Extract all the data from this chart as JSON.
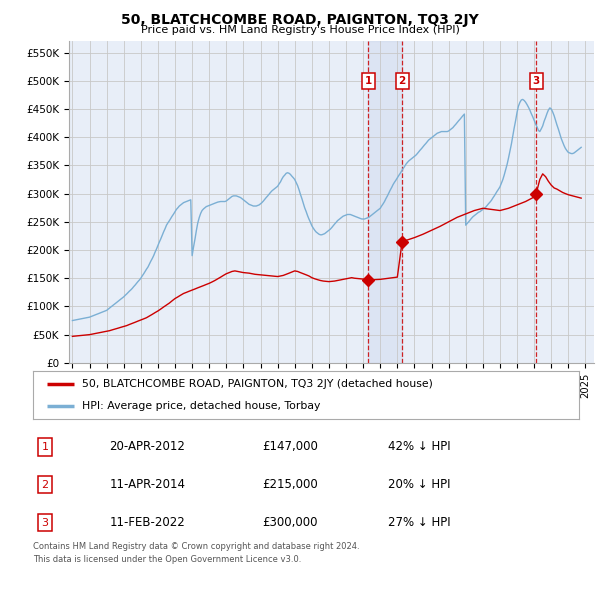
{
  "title": "50, BLATCHCOMBE ROAD, PAIGNTON, TQ3 2JY",
  "subtitle": "Price paid vs. HM Land Registry's House Price Index (HPI)",
  "yticks": [
    0,
    50000,
    100000,
    150000,
    200000,
    250000,
    300000,
    350000,
    400000,
    450000,
    500000,
    550000
  ],
  "ylim": [
    0,
    570000
  ],
  "xlim": [
    1994.8,
    2025.5
  ],
  "background_color": "#ffffff",
  "chart_bg_color": "#e8eef8",
  "grid_color": "#c8c8c8",
  "hpi_color": "#7bafd4",
  "sale_color": "#cc0000",
  "annotation_color": "#cc0000",
  "sale_label": "50, BLATCHCOMBE ROAD, PAIGNTON, TQ3 2JY (detached house)",
  "hpi_label": "HPI: Average price, detached house, Torbay",
  "footnote1": "Contains HM Land Registry data © Crown copyright and database right 2024.",
  "footnote2": "This data is licensed under the Open Government Licence v3.0.",
  "sales": [
    {
      "num": 1,
      "date_x": 2012.3,
      "price": 147000,
      "label": "20-APR-2012",
      "price_str": "£147,000",
      "pct": "42% ↓ HPI"
    },
    {
      "num": 2,
      "date_x": 2014.28,
      "price": 215000,
      "label": "11-APR-2014",
      "price_str": "£215,000",
      "pct": "20% ↓ HPI"
    },
    {
      "num": 3,
      "date_x": 2022.12,
      "price": 300000,
      "label": "11-FEB-2022",
      "price_str": "£300,000",
      "pct": "27% ↓ HPI"
    }
  ],
  "hpi_data_x": [
    1995.0,
    1995.08,
    1995.17,
    1995.25,
    1995.33,
    1995.42,
    1995.5,
    1995.58,
    1995.67,
    1995.75,
    1995.83,
    1995.92,
    1996.0,
    1996.08,
    1996.17,
    1996.25,
    1996.33,
    1996.42,
    1996.5,
    1996.58,
    1996.67,
    1996.75,
    1996.83,
    1996.92,
    1997.0,
    1997.08,
    1997.17,
    1997.25,
    1997.33,
    1997.42,
    1997.5,
    1997.58,
    1997.67,
    1997.75,
    1997.83,
    1997.92,
    1998.0,
    1998.08,
    1998.17,
    1998.25,
    1998.33,
    1998.42,
    1998.5,
    1998.58,
    1998.67,
    1998.75,
    1998.83,
    1998.92,
    1999.0,
    1999.08,
    1999.17,
    1999.25,
    1999.33,
    1999.42,
    1999.5,
    1999.58,
    1999.67,
    1999.75,
    1999.83,
    1999.92,
    2000.0,
    2000.08,
    2000.17,
    2000.25,
    2000.33,
    2000.42,
    2000.5,
    2000.58,
    2000.67,
    2000.75,
    2000.83,
    2000.92,
    2001.0,
    2001.08,
    2001.17,
    2001.25,
    2001.33,
    2001.42,
    2001.5,
    2001.58,
    2001.67,
    2001.75,
    2001.83,
    2001.92,
    2002.0,
    2002.08,
    2002.17,
    2002.25,
    2002.33,
    2002.42,
    2002.5,
    2002.58,
    2002.67,
    2002.75,
    2002.83,
    2002.92,
    2003.0,
    2003.08,
    2003.17,
    2003.25,
    2003.33,
    2003.42,
    2003.5,
    2003.58,
    2003.67,
    2003.75,
    2003.83,
    2003.92,
    2004.0,
    2004.08,
    2004.17,
    2004.25,
    2004.33,
    2004.42,
    2004.5,
    2004.58,
    2004.67,
    2004.75,
    2004.83,
    2004.92,
    2005.0,
    2005.08,
    2005.17,
    2005.25,
    2005.33,
    2005.42,
    2005.5,
    2005.58,
    2005.67,
    2005.75,
    2005.83,
    2005.92,
    2006.0,
    2006.08,
    2006.17,
    2006.25,
    2006.33,
    2006.42,
    2006.5,
    2006.58,
    2006.67,
    2006.75,
    2006.83,
    2006.92,
    2007.0,
    2007.08,
    2007.17,
    2007.25,
    2007.33,
    2007.42,
    2007.5,
    2007.58,
    2007.67,
    2007.75,
    2007.83,
    2007.92,
    2008.0,
    2008.08,
    2008.17,
    2008.25,
    2008.33,
    2008.42,
    2008.5,
    2008.58,
    2008.67,
    2008.75,
    2008.83,
    2008.92,
    2009.0,
    2009.08,
    2009.17,
    2009.25,
    2009.33,
    2009.42,
    2009.5,
    2009.58,
    2009.67,
    2009.75,
    2009.83,
    2009.92,
    2010.0,
    2010.08,
    2010.17,
    2010.25,
    2010.33,
    2010.42,
    2010.5,
    2010.58,
    2010.67,
    2010.75,
    2010.83,
    2010.92,
    2011.0,
    2011.08,
    2011.17,
    2011.25,
    2011.33,
    2011.42,
    2011.5,
    2011.58,
    2011.67,
    2011.75,
    2011.83,
    2011.92,
    2012.0,
    2012.08,
    2012.17,
    2012.25,
    2012.33,
    2012.42,
    2012.5,
    2012.58,
    2012.67,
    2012.75,
    2012.83,
    2012.92,
    2013.0,
    2013.08,
    2013.17,
    2013.25,
    2013.33,
    2013.42,
    2013.5,
    2013.58,
    2013.67,
    2013.75,
    2013.83,
    2013.92,
    2014.0,
    2014.08,
    2014.17,
    2014.25,
    2014.33,
    2014.42,
    2014.5,
    2014.58,
    2014.67,
    2014.75,
    2014.83,
    2014.92,
    2015.0,
    2015.08,
    2015.17,
    2015.25,
    2015.33,
    2015.42,
    2015.5,
    2015.58,
    2015.67,
    2015.75,
    2015.83,
    2015.92,
    2016.0,
    2016.08,
    2016.17,
    2016.25,
    2016.33,
    2016.42,
    2016.5,
    2016.58,
    2016.67,
    2016.75,
    2016.83,
    2016.92,
    2017.0,
    2017.08,
    2017.17,
    2017.25,
    2017.33,
    2017.42,
    2017.5,
    2017.58,
    2017.67,
    2017.75,
    2017.83,
    2017.92,
    2018.0,
    2018.08,
    2018.17,
    2018.25,
    2018.33,
    2018.42,
    2018.5,
    2018.58,
    2018.67,
    2018.75,
    2018.83,
    2018.92,
    2019.0,
    2019.08,
    2019.17,
    2019.25,
    2019.33,
    2019.42,
    2019.5,
    2019.58,
    2019.67,
    2019.75,
    2019.83,
    2019.92,
    2020.0,
    2020.08,
    2020.17,
    2020.25,
    2020.33,
    2020.42,
    2020.5,
    2020.58,
    2020.67,
    2020.75,
    2020.83,
    2020.92,
    2021.0,
    2021.08,
    2021.17,
    2021.25,
    2021.33,
    2021.42,
    2021.5,
    2021.58,
    2021.67,
    2021.75,
    2021.83,
    2021.92,
    2022.0,
    2022.08,
    2022.17,
    2022.25,
    2022.33,
    2022.42,
    2022.5,
    2022.58,
    2022.67,
    2022.75,
    2022.83,
    2022.92,
    2023.0,
    2023.08,
    2023.17,
    2023.25,
    2023.33,
    2023.42,
    2023.5,
    2023.58,
    2023.67,
    2023.75,
    2023.83,
    2023.92,
    2024.0,
    2024.08,
    2024.17,
    2024.25,
    2024.33,
    2024.42,
    2024.5,
    2024.58,
    2024.67,
    2024.75
  ],
  "hpi_data_y": [
    75000,
    75500,
    76000,
    76500,
    77000,
    77500,
    78000,
    78500,
    79000,
    79500,
    80000,
    80500,
    81000,
    82000,
    83000,
    84000,
    85000,
    86000,
    87000,
    88000,
    89000,
    90000,
    91000,
    92000,
    93000,
    95000,
    97000,
    99000,
    101000,
    103000,
    105000,
    107000,
    109000,
    111000,
    113000,
    115000,
    117000,
    119500,
    122000,
    124500,
    127000,
    129500,
    132000,
    135000,
    138000,
    141000,
    144000,
    147000,
    150000,
    154000,
    158000,
    162000,
    166000,
    170000,
    175000,
    180000,
    185000,
    190000,
    196000,
    202000,
    208000,
    214000,
    220000,
    226000,
    232000,
    238000,
    244000,
    248000,
    252000,
    256000,
    260000,
    264000,
    268000,
    272000,
    275000,
    278000,
    280000,
    282000,
    284000,
    285000,
    286000,
    287000,
    288000,
    289000,
    190000,
    205000,
    220000,
    235000,
    248000,
    258000,
    265000,
    270000,
    273000,
    275000,
    277000,
    278000,
    279000,
    280000,
    281000,
    282000,
    283000,
    284000,
    285000,
    285500,
    286000,
    286000,
    286000,
    286000,
    287000,
    289000,
    291000,
    293000,
    295000,
    296000,
    296000,
    296000,
    295000,
    294000,
    293000,
    291000,
    289000,
    287000,
    285000,
    283000,
    281000,
    280000,
    279000,
    278000,
    278000,
    278000,
    279000,
    280000,
    282000,
    284000,
    287000,
    290000,
    293000,
    296000,
    299000,
    302000,
    305000,
    307000,
    309000,
    311000,
    313000,
    317000,
    321000,
    326000,
    330000,
    333000,
    336000,
    337000,
    336000,
    334000,
    331000,
    328000,
    325000,
    320000,
    314000,
    307000,
    299000,
    291000,
    283000,
    275000,
    268000,
    261000,
    255000,
    249000,
    243000,
    239000,
    235000,
    232000,
    230000,
    228000,
    227000,
    227000,
    228000,
    229000,
    231000,
    233000,
    235000,
    237000,
    240000,
    243000,
    246000,
    249000,
    252000,
    254000,
    256000,
    258000,
    260000,
    261000,
    262000,
    263000,
    263000,
    263000,
    262000,
    261000,
    260000,
    259000,
    258000,
    257000,
    256000,
    255000,
    255000,
    255000,
    256000,
    257000,
    258000,
    260000,
    262000,
    264000,
    266000,
    268000,
    270000,
    272000,
    274000,
    278000,
    282000,
    286000,
    291000,
    296000,
    301000,
    306000,
    311000,
    316000,
    320000,
    324000,
    328000,
    332000,
    336000,
    340000,
    344000,
    348000,
    352000,
    355000,
    358000,
    360000,
    362000,
    364000,
    366000,
    368000,
    371000,
    374000,
    377000,
    380000,
    383000,
    386000,
    389000,
    392000,
    395000,
    397000,
    399000,
    401000,
    403000,
    405000,
    407000,
    408000,
    409000,
    410000,
    410000,
    410000,
    410000,
    410000,
    411000,
    413000,
    415000,
    417000,
    420000,
    423000,
    426000,
    429000,
    432000,
    435000,
    438000,
    441000,
    244000,
    247000,
    250000,
    253000,
    256000,
    259000,
    261000,
    263000,
    265000,
    267000,
    268000,
    270000,
    272000,
    274000,
    276000,
    279000,
    282000,
    285000,
    288000,
    292000,
    296000,
    300000,
    304000,
    308000,
    312000,
    318000,
    325000,
    333000,
    342000,
    352000,
    363000,
    375000,
    388000,
    402000,
    416000,
    430000,
    444000,
    455000,
    462000,
    466000,
    467000,
    465000,
    462000,
    458000,
    453000,
    448000,
    442000,
    436000,
    430000,
    424000,
    418000,
    412000,
    410000,
    415000,
    420000,
    428000,
    435000,
    442000,
    448000,
    452000,
    450000,
    445000,
    438000,
    430000,
    422000,
    414000,
    406000,
    398000,
    391000,
    385000,
    380000,
    376000,
    373000,
    372000,
    371000,
    371000,
    372000,
    374000,
    376000,
    378000,
    380000,
    382000
  ],
  "red_data_x": [
    1995.0,
    1995.17,
    1995.33,
    1995.5,
    1995.67,
    1995.83,
    1996.0,
    1996.17,
    1996.33,
    1996.5,
    1996.67,
    1996.83,
    1997.0,
    1997.17,
    1997.33,
    1997.5,
    1997.67,
    1997.83,
    1998.0,
    1998.17,
    1998.33,
    1998.5,
    1998.67,
    1998.83,
    1999.0,
    1999.17,
    1999.33,
    1999.5,
    1999.67,
    1999.83,
    2000.0,
    2000.17,
    2000.33,
    2000.5,
    2000.67,
    2000.83,
    2001.0,
    2001.17,
    2001.33,
    2001.5,
    2001.67,
    2001.83,
    2002.0,
    2002.17,
    2002.33,
    2002.5,
    2002.67,
    2002.83,
    2003.0,
    2003.17,
    2003.33,
    2003.5,
    2003.67,
    2003.83,
    2004.0,
    2004.17,
    2004.33,
    2004.5,
    2004.67,
    2004.83,
    2005.0,
    2005.17,
    2005.33,
    2005.5,
    2005.67,
    2005.83,
    2006.0,
    2006.17,
    2006.33,
    2006.5,
    2006.67,
    2006.83,
    2007.0,
    2007.17,
    2007.33,
    2007.5,
    2007.67,
    2007.83,
    2008.0,
    2008.17,
    2008.33,
    2008.5,
    2008.67,
    2008.83,
    2009.0,
    2009.17,
    2009.33,
    2009.5,
    2009.67,
    2009.83,
    2010.0,
    2010.17,
    2010.33,
    2010.5,
    2010.67,
    2010.83,
    2011.0,
    2011.17,
    2011.33,
    2011.5,
    2011.67,
    2011.83,
    2012.0,
    2012.17,
    2012.3
  ],
  "red_data_y": [
    47000,
    47500,
    48000,
    48500,
    49000,
    49500,
    50000,
    51000,
    52000,
    53000,
    54000,
    55000,
    56000,
    57000,
    58500,
    60000,
    61500,
    63000,
    64500,
    66000,
    68000,
    70000,
    72000,
    74000,
    76000,
    78000,
    80000,
    83000,
    86000,
    89000,
    92000,
    95500,
    99000,
    102500,
    106000,
    110000,
    114000,
    117000,
    120000,
    123000,
    125000,
    127000,
    129000,
    131000,
    133000,
    135000,
    137000,
    139000,
    141000,
    143500,
    146000,
    149000,
    152000,
    155000,
    158000,
    160000,
    162000,
    163000,
    162000,
    161000,
    160000,
    159500,
    159000,
    158000,
    157000,
    156500,
    156000,
    155500,
    155000,
    154500,
    154000,
    153500,
    153000,
    154000,
    155000,
    157000,
    159000,
    161000,
    163000,
    162000,
    160000,
    158000,
    156000,
    154000,
    151000,
    149000,
    147500,
    146000,
    145000,
    144500,
    144000,
    144500,
    145000,
    146000,
    147000,
    148000,
    149000,
    150000,
    151000,
    150000,
    149500,
    149000,
    148500,
    148000,
    147000
  ],
  "red_data_x2": [
    2012.3,
    2013.0,
    2013.5,
    2014.0,
    2014.28
  ],
  "red_data_y2": [
    147000,
    148000,
    150000,
    152000,
    215000
  ],
  "red_data_x3": [
    2014.28,
    2014.5,
    2015.0,
    2015.5,
    2016.0,
    2016.5,
    2017.0,
    2017.5,
    2018.0,
    2018.5,
    2019.0,
    2019.5,
    2020.0,
    2020.5,
    2021.0,
    2021.5,
    2022.0,
    2022.12
  ],
  "red_data_y3": [
    215000,
    217000,
    222000,
    228000,
    235000,
    242000,
    250000,
    258000,
    264000,
    270000,
    274000,
    272000,
    270000,
    274000,
    280000,
    286000,
    294000,
    300000
  ],
  "red_data_x4": [
    2022.12,
    2022.33,
    2022.5,
    2022.67,
    2022.83,
    2023.0,
    2023.17,
    2023.33,
    2023.5,
    2023.67,
    2023.83,
    2024.0,
    2024.25,
    2024.5,
    2024.75
  ],
  "red_data_y4": [
    300000,
    325000,
    335000,
    330000,
    322000,
    315000,
    310000,
    308000,
    305000,
    302000,
    300000,
    298000,
    296000,
    294000,
    292000
  ]
}
